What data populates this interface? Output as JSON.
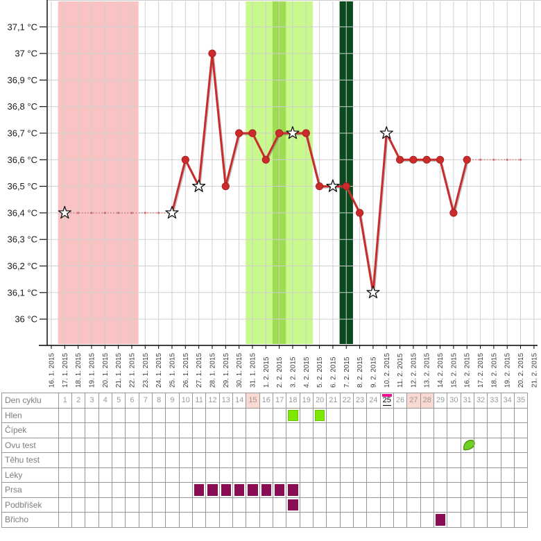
{
  "colors": {
    "line": "#cb2b2b",
    "grid": "#cfcfcf",
    "axis": "#000000",
    "y_label_text": "#1a1a1a",
    "x_label_text": "#3c3c3c",
    "band_menstruation": "#f9c3c3",
    "band_fertile": "#c9f98c",
    "band_peak_fertile": "#9edc52",
    "band_ovulation": "#0a4a1e",
    "mark_maroon": "#8a0d53",
    "mark_green": "#7fe800",
    "day_pink_bg": "#f9d9d1",
    "current_day_accent": "#ef0d96",
    "table_border": "#969696"
  },
  "chart_data": {
    "type": "line",
    "title": "",
    "ylabel": "",
    "unit": "°C",
    "ylim": [
      36.0,
      37.2
    ],
    "y_tick_step": 0.1,
    "grid": true,
    "y_ticks": [
      {
        "value": 37.1,
        "label": "37,1 °C"
      },
      {
        "value": 37.0,
        "label": "37 °C"
      },
      {
        "value": 36.9,
        "label": "36,9 °C"
      },
      {
        "value": 36.8,
        "label": "36,8 °C"
      },
      {
        "value": 36.7,
        "label": "36,7 °C"
      },
      {
        "value": 36.6,
        "label": "36,6 °C"
      },
      {
        "value": 36.5,
        "label": "36,5 °C"
      },
      {
        "value": 36.4,
        "label": "36,4 °C"
      },
      {
        "value": 36.3,
        "label": "36,3 °C"
      },
      {
        "value": 36.2,
        "label": "36,2 °C"
      },
      {
        "value": 36.1,
        "label": "36,1 °C"
      },
      {
        "value": 36.0,
        "label": "36 °C"
      }
    ],
    "x_tick_labels": [
      "16. 1. 2015",
      "17. 1. 2015",
      "18. 1. 2015",
      "19. 1. 2015",
      "20. 1. 2015",
      "21. 1. 2015",
      "22. 1. 2015",
      "23. 1. 2015",
      "24. 1. 2015",
      "25. 1. 2015",
      "26. 1. 2015",
      "27. 1. 2015",
      "28. 1. 2015",
      "29. 1. 2015",
      "30. 1. 2015",
      "31. 1. 2015",
      "1. 2. 2015",
      "2. 2. 2015",
      "3. 2. 2015",
      "4. 2. 2015",
      "5. 2. 2015",
      "6. 2. 2015",
      "7. 2. 2015",
      "8. 2. 2015",
      "9. 2. 2015",
      "10. 2. 2015",
      "11. 2. 2015",
      "12. 2. 2015",
      "13. 2. 2015",
      "14. 2. 2015",
      "15. 2. 2015",
      "16. 2. 2015",
      "17. 2. 2015",
      "18. 2. 2015",
      "19. 2. 2015",
      "20. 2. 2015",
      "21. 2. 2015"
    ],
    "series": [
      {
        "name": "basal-temperature",
        "points": [
          {
            "day": 1,
            "date": "17. 1. 2015",
            "temp": 36.4,
            "marker": "star"
          },
          {
            "day": 9,
            "date": "25. 1. 2015",
            "temp": 36.4,
            "marker": "star"
          },
          {
            "day": 10,
            "date": "26. 1. 2015",
            "temp": 36.6,
            "marker": "dot"
          },
          {
            "day": 11,
            "date": "27. 1. 2015",
            "temp": 36.5,
            "marker": "star"
          },
          {
            "day": 12,
            "date": "28. 1. 2015",
            "temp": 37.0,
            "marker": "dot"
          },
          {
            "day": 13,
            "date": "29. 1. 2015",
            "temp": 36.5,
            "marker": "dot"
          },
          {
            "day": 14,
            "date": "30. 1. 2015",
            "temp": 36.7,
            "marker": "dot"
          },
          {
            "day": 15,
            "date": "31. 1. 2015",
            "temp": 36.7,
            "marker": "dot"
          },
          {
            "day": 16,
            "date": "1. 2. 2015",
            "temp": 36.6,
            "marker": "dot"
          },
          {
            "day": 17,
            "date": "2. 2. 2015",
            "temp": 36.7,
            "marker": "dot"
          },
          {
            "day": 18,
            "date": "3. 2. 2015",
            "temp": 36.7,
            "marker": "star"
          },
          {
            "day": 19,
            "date": "4. 2. 2015",
            "temp": 36.7,
            "marker": "dot"
          },
          {
            "day": 20,
            "date": "5. 2. 2015",
            "temp": 36.5,
            "marker": "dot"
          },
          {
            "day": 21,
            "date": "6. 2. 2015",
            "temp": 36.5,
            "marker": "star"
          },
          {
            "day": 22,
            "date": "7. 2. 2015",
            "temp": 36.5,
            "marker": "dot"
          },
          {
            "day": 23,
            "date": "8. 2. 2015",
            "temp": 36.4,
            "marker": "dot"
          },
          {
            "day": 24,
            "date": "9. 2. 2015",
            "temp": 36.1,
            "marker": "star"
          },
          {
            "day": 25,
            "date": "10. 2. 2015",
            "temp": 36.7,
            "marker": "star"
          },
          {
            "day": 26,
            "date": "11. 2. 2015",
            "temp": 36.6,
            "marker": "dot"
          },
          {
            "day": 27,
            "date": "12. 2. 2015",
            "temp": 36.6,
            "marker": "dot"
          },
          {
            "day": 28,
            "date": "13. 2. 2015",
            "temp": 36.6,
            "marker": "dot"
          },
          {
            "day": 29,
            "date": "14. 2. 2015",
            "temp": 36.6,
            "marker": "dot"
          },
          {
            "day": 30,
            "date": "15. 2. 2015",
            "temp": 36.4,
            "marker": "dot"
          },
          {
            "day": 31,
            "date": "16. 2. 2015",
            "temp": 36.6,
            "marker": "dot"
          }
        ]
      }
    ],
    "dotted_gaps": [
      {
        "from_day": 1,
        "to_day": 9,
        "temp": 36.4,
        "mini_dot_days": [
          2,
          3,
          4,
          5,
          6,
          7,
          8
        ]
      },
      {
        "from_day": 31,
        "to_day": 35,
        "temp": 36.6,
        "mini_dot_days": [
          32,
          33,
          34,
          35
        ]
      }
    ],
    "bands": [
      {
        "name": "menstruation-band",
        "from_day": 1,
        "to_day": 6,
        "color": "#f9c3c3"
      },
      {
        "name": "fertile-band",
        "from_day": 15,
        "to_day": 19,
        "color": "#c9f98c"
      },
      {
        "name": "peak-fertile-band",
        "from_day": 17,
        "to_day": 17,
        "color": "#9edc52"
      },
      {
        "name": "ovulation-band",
        "from_day": 22,
        "to_day": 22,
        "color": "#0a4a1e"
      }
    ]
  },
  "cycle_table": {
    "day_count": 35,
    "highlighted_days_pink": [
      15,
      27,
      28
    ],
    "current_day": 25,
    "rows": [
      {
        "key": "den-cyklu",
        "label": "Den cyklu",
        "type": "day-numbers",
        "marks": []
      },
      {
        "key": "hlen",
        "label": "Hlen",
        "marks": [
          {
            "type": "square",
            "color": "green",
            "days": [
              18,
              20
            ]
          }
        ]
      },
      {
        "key": "cipek",
        "label": "Čípek",
        "marks": []
      },
      {
        "key": "ovu-test",
        "label": "Ovu test",
        "marks": [
          {
            "type": "leaf-icon",
            "days": [
              31
            ]
          }
        ]
      },
      {
        "key": "tehu-test",
        "label": "Těhu test",
        "marks": []
      },
      {
        "key": "leky",
        "label": "Léky",
        "marks": []
      },
      {
        "key": "prsa",
        "label": "Prsa",
        "marks": [
          {
            "type": "square",
            "color": "maroon",
            "days": [
              11,
              12,
              13,
              14,
              15,
              16,
              17,
              18
            ]
          }
        ]
      },
      {
        "key": "podbrisek",
        "label": "Podbřišek",
        "marks": [
          {
            "type": "square",
            "color": "maroon",
            "days": [
              18
            ]
          }
        ]
      },
      {
        "key": "bricho",
        "label": "Břicho",
        "marks": [
          {
            "type": "square",
            "color": "maroon",
            "days": [
              29
            ]
          }
        ]
      }
    ]
  }
}
